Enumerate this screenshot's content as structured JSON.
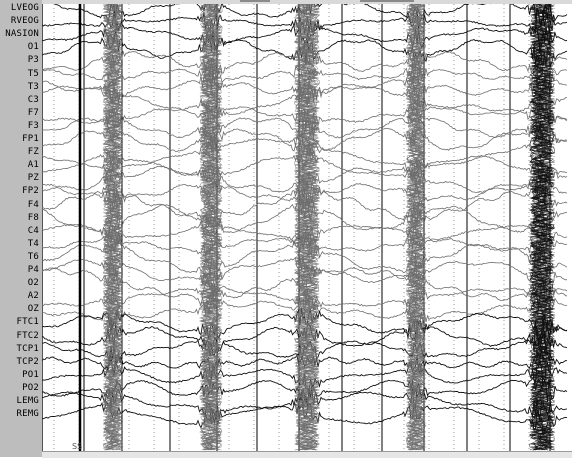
{
  "channels": [
    {
      "label": "LVEOG"
    },
    {
      "label": "RVEOG"
    },
    {
      "label": "NASION"
    },
    {
      "label": "O1"
    },
    {
      "label": "P3"
    },
    {
      "label": "T5"
    },
    {
      "label": "T3"
    },
    {
      "label": "C3"
    },
    {
      "label": "F7"
    },
    {
      "label": "F3"
    },
    {
      "label": "FP1"
    },
    {
      "label": "FZ"
    },
    {
      "label": "A1"
    },
    {
      "label": "PZ"
    },
    {
      "label": "FP2"
    },
    {
      "label": "F4"
    },
    {
      "label": "F8"
    },
    {
      "label": "C4"
    },
    {
      "label": "T4"
    },
    {
      "label": "T6"
    },
    {
      "label": "P4"
    },
    {
      "label": "O2"
    },
    {
      "label": "A2"
    },
    {
      "label": "OZ"
    },
    {
      "label": "FTC1"
    },
    {
      "label": "FTC2"
    },
    {
      "label": "TCP1"
    },
    {
      "label": "TCP2"
    },
    {
      "label": "PO1"
    },
    {
      "label": "PO2"
    },
    {
      "label": "LEMG"
    },
    {
      "label": "REMG"
    }
  ],
  "event_marker": {
    "label": "SS"
  },
  "colors": {
    "label_panel": "#bdbdbd",
    "trace_background": "#ffffff",
    "trace_dark": "#111111",
    "trace_gray": "#6e6e6e",
    "second_gridline": "#000000",
    "subdivision_gridline": "#808080"
  }
}
